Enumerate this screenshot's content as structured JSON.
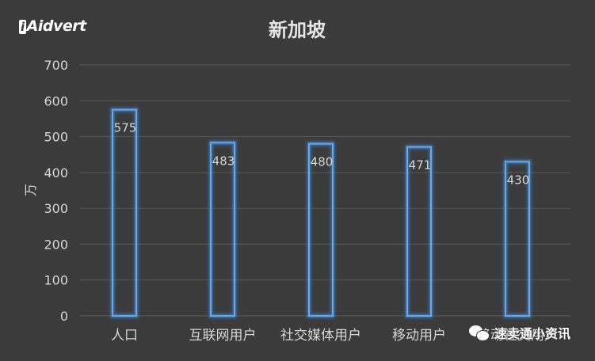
{
  "logo_text": "Aidvert",
  "logo_mark": "i",
  "watermark": {
    "icon": "wechat-icon",
    "text": "速卖通小资讯"
  },
  "colors": {
    "background": "#3b3b3b",
    "bar_stroke": "#6aa8e8",
    "bar_glow": "#3f86d6",
    "grid": "#5a5a5a",
    "text": "#d6d6d6",
    "title": "#e6e6e6"
  },
  "chart_data": {
    "type": "bar",
    "title": "新加坡",
    "xlabel": "",
    "ylabel": "万",
    "categories": [
      "人口",
      "互联网用户",
      "社交媒体用户",
      "移动用户",
      "移动社交用户"
    ],
    "series": [
      {
        "values": [
          575,
          483,
          480,
          471,
          430
        ]
      }
    ],
    "data_labels": [
      "575",
      "483",
      "480",
      "471",
      "430"
    ],
    "ylim": [
      0,
      700
    ],
    "yticks": [
      0,
      100,
      200,
      300,
      400,
      500,
      600,
      700
    ],
    "grid": true,
    "legend": "none"
  }
}
